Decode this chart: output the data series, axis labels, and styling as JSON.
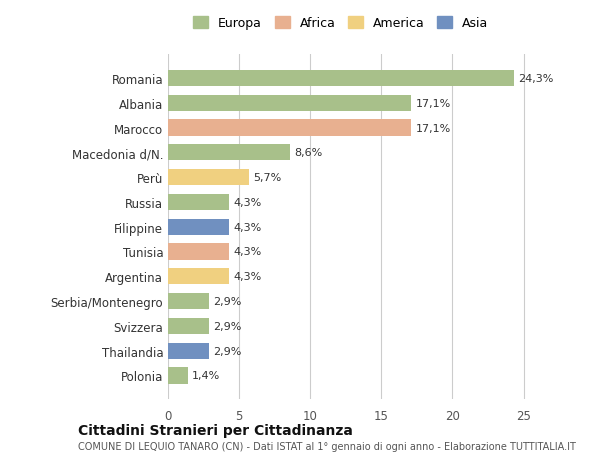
{
  "countries": [
    "Romania",
    "Albania",
    "Marocco",
    "Macedonia d/N.",
    "Perù",
    "Russia",
    "Filippine",
    "Tunisia",
    "Argentina",
    "Serbia/Montenegro",
    "Svizzera",
    "Thailandia",
    "Polonia"
  ],
  "values": [
    24.3,
    17.1,
    17.1,
    8.6,
    5.7,
    4.3,
    4.3,
    4.3,
    4.3,
    2.9,
    2.9,
    2.9,
    1.4
  ],
  "labels": [
    "24,3%",
    "17,1%",
    "17,1%",
    "8,6%",
    "5,7%",
    "4,3%",
    "4,3%",
    "4,3%",
    "4,3%",
    "2,9%",
    "2,9%",
    "2,9%",
    "1,4%"
  ],
  "continents": [
    "Europa",
    "Europa",
    "Africa",
    "Europa",
    "America",
    "Europa",
    "Asia",
    "Africa",
    "America",
    "Europa",
    "Europa",
    "Asia",
    "Europa"
  ],
  "colors": {
    "Europa": "#a8c08a",
    "Africa": "#e8b090",
    "America": "#f0d080",
    "Asia": "#7090c0"
  },
  "legend_order": [
    "Europa",
    "Africa",
    "America",
    "Asia"
  ],
  "title": "Cittadini Stranieri per Cittadinanza",
  "subtitle": "COMUNE DI LEQUIO TANARO (CN) - Dati ISTAT al 1° gennaio di ogni anno - Elaborazione TUTTITALIA.IT",
  "xlim": [
    0,
    27
  ],
  "xticks": [
    0,
    5,
    10,
    15,
    20,
    25
  ],
  "background_color": "#ffffff",
  "bar_height": 0.65,
  "grid_color": "#cccccc"
}
